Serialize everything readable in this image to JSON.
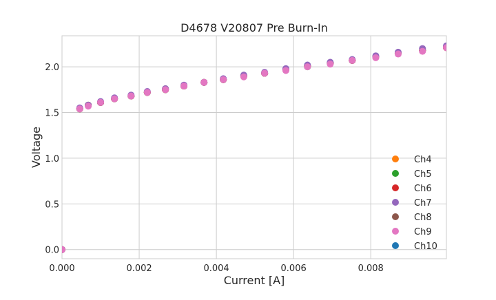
{
  "chart_data": {
    "type": "scatter",
    "title": "D4678 V20807 Pre Burn-In",
    "xlabel": "Current [A]",
    "ylabel": "Voltage",
    "xlim": [
      0,
      0.00996
    ],
    "ylim": [
      -0.1,
      2.34
    ],
    "xticks": [
      0,
      0.002,
      0.004,
      0.006,
      0.008
    ],
    "xtick_labels": [
      "0.000",
      "0.002",
      "0.004",
      "0.006",
      "0.008"
    ],
    "yticks": [
      0,
      0.5,
      1.0,
      1.5,
      2.0
    ],
    "ytick_labels": [
      "0.0",
      "0.5",
      "1.0",
      "1.5",
      "2.0"
    ],
    "grid": true,
    "legend_position": "lower-right",
    "x": [
      0,
      0.00046,
      0.00068,
      0.001,
      0.00136,
      0.00179,
      0.00221,
      0.00268,
      0.00316,
      0.00368,
      0.00418,
      0.00471,
      0.00525,
      0.0058,
      0.00636,
      0.00695,
      0.00752,
      0.00813,
      0.00871,
      0.00934,
      0.00996
    ],
    "series": [
      {
        "name": "Ch4",
        "color": "#ff7f0e",
        "values": [
          0,
          1.54,
          1.58,
          1.61,
          1.65,
          1.68,
          1.72,
          1.75,
          1.79,
          1.83,
          1.86,
          1.9,
          1.93,
          1.97,
          2.01,
          2.04,
          2.07,
          2.11,
          2.15,
          2.18,
          2.21
        ]
      },
      {
        "name": "Ch5",
        "color": "#2ca02c",
        "values": [
          0,
          1.54,
          1.58,
          1.61,
          1.65,
          1.68,
          1.72,
          1.75,
          1.79,
          1.83,
          1.86,
          1.9,
          1.93,
          1.97,
          2.0,
          2.04,
          2.07,
          2.11,
          2.15,
          2.18,
          2.22
        ]
      },
      {
        "name": "Ch6",
        "color": "#d62728",
        "values": [
          0,
          1.54,
          1.58,
          1.61,
          1.65,
          1.68,
          1.72,
          1.75,
          1.79,
          1.83,
          1.86,
          1.9,
          1.93,
          1.97,
          2.01,
          2.04,
          2.07,
          2.11,
          2.15,
          2.18,
          2.21
        ]
      },
      {
        "name": "Ch7",
        "color": "#9467bd",
        "values": [
          0,
          1.55,
          1.58,
          1.62,
          1.66,
          1.69,
          1.73,
          1.76,
          1.8,
          1.83,
          1.87,
          1.91,
          1.94,
          1.98,
          2.02,
          2.05,
          2.08,
          2.12,
          2.16,
          2.2,
          2.23
        ]
      },
      {
        "name": "Ch8",
        "color": "#8c564b",
        "values": [
          0,
          1.54,
          1.58,
          1.61,
          1.65,
          1.68,
          1.72,
          1.76,
          1.79,
          1.83,
          1.86,
          1.9,
          1.93,
          1.97,
          2.01,
          2.04,
          2.07,
          2.11,
          2.15,
          2.18,
          2.22
        ]
      },
      {
        "name": "Ch9",
        "color": "#e377c2",
        "values": [
          0,
          1.54,
          1.57,
          1.61,
          1.65,
          1.68,
          1.72,
          1.75,
          1.79,
          1.83,
          1.86,
          1.89,
          1.93,
          1.96,
          2.0,
          2.03,
          2.07,
          2.1,
          2.14,
          2.17,
          2.21
        ]
      },
      {
        "name": "Ch10",
        "color": "#1f77b4",
        "values": [
          0,
          1.54,
          1.58,
          1.61,
          1.65,
          1.68,
          1.72,
          1.75,
          1.79,
          1.83,
          1.86,
          1.9,
          1.93,
          1.97,
          2.01,
          2.04,
          2.07,
          2.11,
          2.15,
          2.18,
          2.21
        ]
      }
    ],
    "draw_order": [
      "Ch10",
      "Ch4",
      "Ch5",
      "Ch6",
      "Ch8",
      "Ch7",
      "Ch9"
    ]
  }
}
